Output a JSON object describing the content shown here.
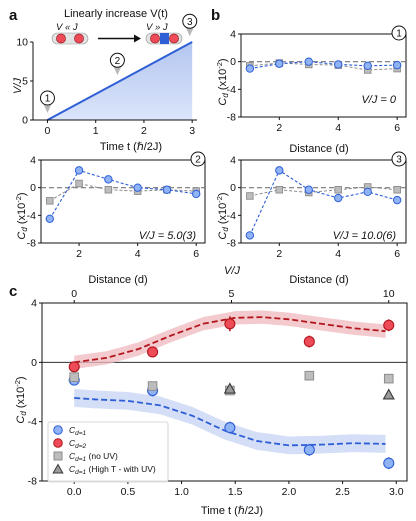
{
  "panel_labels": {
    "a": "a",
    "b": "b",
    "c": "c"
  },
  "colors": {
    "blue": "#2f5fd6",
    "blue_fill": "#c5d3f3",
    "blue_marker": "#8fb3f5",
    "red": "#b3161d",
    "red_fill": "#efb8bd",
    "red_marker": "#ee4b58",
    "gray": "#8c8c8c",
    "gray_marker": "#bdbdbd",
    "dark": "#3a3a3a"
  },
  "panel_a": {
    "title": "Linearly increase V(t)",
    "left_state": "V « J",
    "right_state": "V » J",
    "xlabel": "Time t (ℏ/2J)",
    "ylabel": "V/J",
    "markers": [
      "1",
      "2",
      "3"
    ]
  },
  "panel_b": {
    "ylabel": "C",
    "ylabel_sub": "d",
    "ylabel_scale": "(x10",
    "ylabel_exp": "-2",
    "ylabel_close": ")",
    "xlabel": "Distance (d)",
    "subplots": [
      {
        "marker": "1",
        "annotation": "V/J = 0"
      },
      {
        "marker": "2",
        "annotation": "V/J = 5.0(3)"
      },
      {
        "marker": "3",
        "annotation": "V/J = 10.0(6)"
      }
    ]
  },
  "panel_c": {
    "top_axis_label": "V/J",
    "xlabel": "Time t (ℏ/2J)",
    "ylabel": "C",
    "ylabel_sub": "d",
    "ylabel_scale": "(x10",
    "ylabel_exp": "-2",
    "ylabel_close": ")",
    "legend": [
      {
        "text": "C",
        "sub": "d=1",
        "suffix": ""
      },
      {
        "text": "C",
        "sub": "d=2",
        "suffix": ""
      },
      {
        "text": "C",
        "sub": "d=1",
        "suffix": " (no UV)"
      },
      {
        "text": "C",
        "sub": "d=1",
        "suffix": " (High T - with UV)"
      }
    ]
  },
  "chart_data": [
    {
      "type": "line",
      "panel": "a",
      "x": [
        0,
        3
      ],
      "y": [
        0,
        10
      ],
      "xlim": [
        -0.3,
        3.1
      ],
      "ylim": [
        0,
        10
      ],
      "xticks": [
        0,
        1,
        2,
        3
      ],
      "yticks": [
        0,
        5,
        10
      ],
      "markers": [
        {
          "label": "1",
          "t": 0
        },
        {
          "label": "2",
          "t": 1.45
        },
        {
          "label": "3",
          "t": 2.95
        }
      ]
    },
    {
      "type": "line",
      "panel": "b1",
      "x": [
        1,
        2,
        3,
        4,
        5,
        6
      ],
      "xlim": [
        0.7,
        6.3
      ],
      "ylim": [
        -8,
        4
      ],
      "yticks": [
        -8,
        -4,
        0,
        4
      ],
      "xticks": [
        2,
        4,
        6
      ],
      "series": [
        {
          "values": [
            -1.0,
            -0.3,
            0.0,
            -0.4,
            -0.6,
            -0.5
          ]
        },
        {
          "values": [
            -0.6,
            -0.2,
            -0.4,
            -0.5,
            -1.2,
            -1.0
          ]
        }
      ]
    },
    {
      "type": "line",
      "panel": "b2",
      "x": [
        1,
        2,
        3,
        4,
        5,
        6
      ],
      "xlim": [
        0.7,
        6.3
      ],
      "ylim": [
        -8,
        4
      ],
      "yticks": [
        -8,
        -4,
        0,
        4
      ],
      "xticks": [
        2,
        4,
        6
      ],
      "series": [
        {
          "values": [
            -4.5,
            2.5,
            1.2,
            0.0,
            -0.3,
            -0.9
          ]
        },
        {
          "values": [
            -1.9,
            0.6,
            -0.3,
            -0.5,
            -0.3,
            -0.5
          ]
        }
      ]
    },
    {
      "type": "line",
      "panel": "b3",
      "x": [
        1,
        2,
        3,
        4,
        5,
        6
      ],
      "xlim": [
        0.7,
        6.3
      ],
      "ylim": [
        -8,
        4
      ],
      "yticks": [
        -8,
        -4,
        0,
        4
      ],
      "xticks": [
        2,
        4,
        6
      ],
      "series": [
        {
          "values": [
            -6.9,
            2.5,
            -0.3,
            -1.5,
            -0.6,
            -1.8
          ]
        },
        {
          "values": [
            -1.2,
            -0.3,
            -0.7,
            -0.3,
            0.1,
            -0.3
          ]
        }
      ]
    },
    {
      "type": "scatter",
      "panel": "c",
      "xlim": [
        -0.3,
        3.1
      ],
      "ylim": [
        -8,
        4
      ],
      "xticks": [
        0.0,
        0.5,
        1.0,
        1.5,
        2.0,
        2.5,
        3.0
      ],
      "yticks": [
        -8,
        -4,
        0,
        4
      ],
      "top_xticks": [
        0,
        5,
        10
      ],
      "top_range": [
        0,
        10
      ],
      "series": [
        {
          "marker": "circle-blue",
          "x": [
            0.0,
            0.73,
            1.45,
            2.19,
            2.93
          ],
          "y": [
            -1.2,
            -1.9,
            -4.4,
            -5.9,
            -6.8
          ],
          "err": [
            0.3,
            0.4,
            0.4,
            0.4,
            0.4
          ]
        },
        {
          "marker": "circle-red",
          "x": [
            0.0,
            0.73,
            1.45,
            2.19,
            2.93
          ],
          "y": [
            -0.3,
            0.7,
            2.6,
            1.4,
            2.5
          ],
          "err": [
            0.3,
            0.3,
            0.5,
            0.4,
            0.4
          ]
        },
        {
          "marker": "square-gray",
          "x": [
            0.0,
            0.73,
            1.45,
            2.19,
            2.93
          ],
          "y": [
            -1.0,
            -1.6,
            -1.9,
            -0.9,
            -1.1
          ],
          "err": [
            0.3,
            0.3,
            0.3,
            0.3,
            0.3
          ]
        },
        {
          "marker": "triangle-dark",
          "x": [
            1.45,
            2.93
          ],
          "y": [
            -1.8,
            -2.2
          ],
          "err": [
            0.3,
            0.3
          ]
        }
      ],
      "fits": [
        {
          "color": "red",
          "x": [
            0,
            0.3,
            0.6,
            0.9,
            1.2,
            1.5,
            1.75,
            2.0,
            2.3,
            2.6,
            2.9
          ],
          "y": [
            0,
            0.3,
            0.9,
            1.8,
            2.6,
            3.0,
            3.05,
            2.9,
            2.6,
            2.3,
            2.1
          ],
          "band": 0.45
        },
        {
          "color": "blue",
          "x": [
            0,
            0.2,
            0.5,
            0.8,
            1.1,
            1.4,
            1.7,
            2.0,
            2.3,
            2.6,
            2.9
          ],
          "y": [
            -2.4,
            -2.5,
            -2.6,
            -2.9,
            -3.6,
            -4.6,
            -5.3,
            -5.6,
            -5.55,
            -5.45,
            -5.5
          ],
          "band": 0.6
        }
      ]
    }
  ]
}
